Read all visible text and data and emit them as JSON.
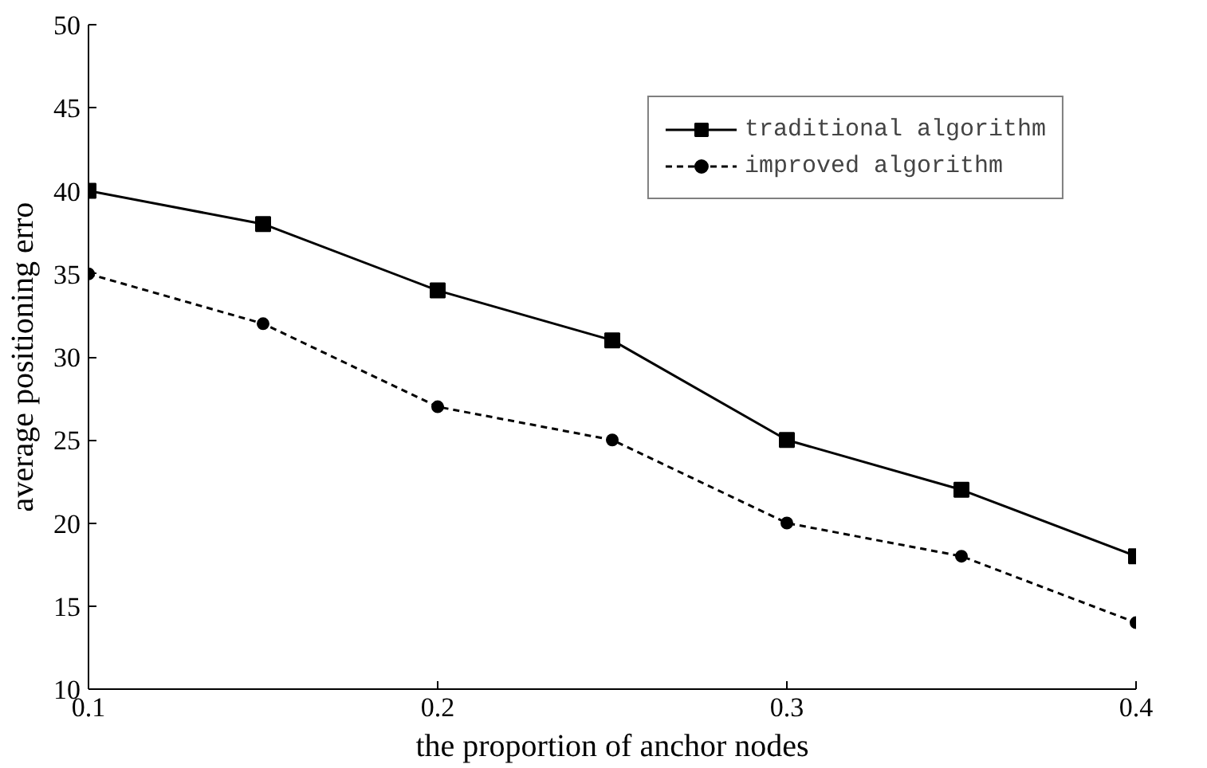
{
  "chart_data": {
    "type": "line",
    "xlabel": "the proportion of anchor nodes",
    "ylabel": "average positioning erro",
    "x": [
      0.1,
      0.15,
      0.2,
      0.25,
      0.3,
      0.35,
      0.4
    ],
    "series": [
      {
        "name": "traditional algorithm",
        "color": "#000000",
        "values": [
          40,
          38,
          34,
          31,
          25,
          22,
          18
        ],
        "marker": "square",
        "line_style": "solid"
      },
      {
        "name": "improved algorithm",
        "color": "#000000",
        "values": [
          35,
          32,
          27,
          25,
          20,
          18,
          14
        ],
        "marker": "circle",
        "line_style": "dashed"
      }
    ],
    "xlim": [
      0.1,
      0.4
    ],
    "xticks": [
      0.1,
      0.2,
      0.3,
      0.4
    ],
    "ylim": [
      10,
      50
    ],
    "yticks": [
      10,
      15,
      20,
      25,
      30,
      35,
      40,
      45,
      50
    ],
    "grid": false,
    "legend": "top right"
  }
}
